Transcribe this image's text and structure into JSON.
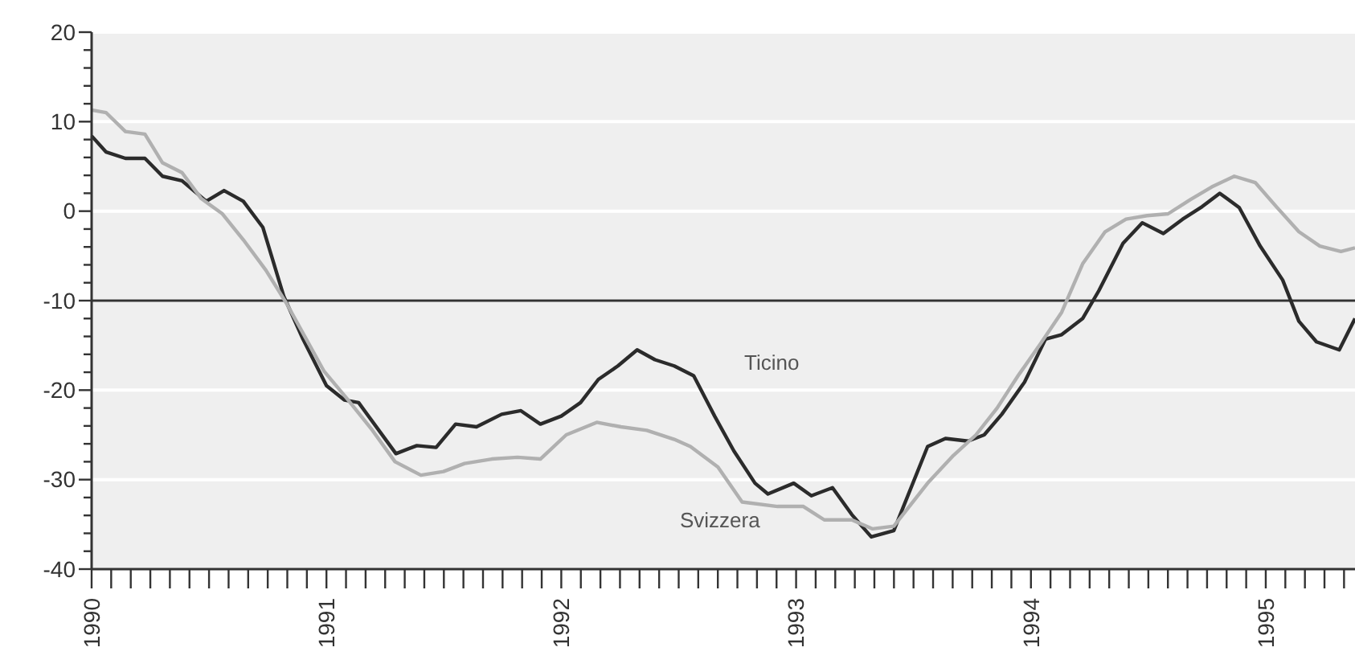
{
  "chart_data": {
    "type": "line",
    "xlim": [
      1990,
      1995.38
    ],
    "ylim": [
      -40,
      20
    ],
    "xticks": [
      1990,
      {
        "value": 1990.0833,
        "label": null
      },
      {
        "value": 1990.1667,
        "label": null
      },
      {
        "value": 1990.25,
        "label": null
      },
      {
        "value": 1990.3333,
        "label": null
      },
      {
        "value": 1990.4167,
        "label": null
      },
      {
        "value": 1990.5,
        "label": null
      },
      {
        "value": 1990.5833,
        "label": null
      },
      {
        "value": 1990.6667,
        "label": null
      },
      {
        "value": 1990.75,
        "label": null
      },
      {
        "value": 1990.8333,
        "label": null
      },
      {
        "value": 1990.9167,
        "label": null
      },
      1991,
      {
        "value": 1991.0833,
        "label": null
      },
      {
        "value": 1991.1667,
        "label": null
      },
      {
        "value": 1991.25,
        "label": null
      },
      {
        "value": 1991.3333,
        "label": null
      },
      {
        "value": 1991.4167,
        "label": null
      },
      {
        "value": 1991.5,
        "label": null
      },
      {
        "value": 1991.5833,
        "label": null
      },
      {
        "value": 1991.6667,
        "label": null
      },
      {
        "value": 1991.75,
        "label": null
      },
      {
        "value": 1991.8333,
        "label": null
      },
      {
        "value": 1991.9167,
        "label": null
      },
      1992,
      {
        "value": 1992.0833,
        "label": null
      },
      {
        "value": 1992.1667,
        "label": null
      },
      {
        "value": 1992.25,
        "label": null
      },
      {
        "value": 1992.3333,
        "label": null
      },
      {
        "value": 1992.4167,
        "label": null
      },
      {
        "value": 1992.5,
        "label": null
      },
      {
        "value": 1992.5833,
        "label": null
      },
      {
        "value": 1992.6667,
        "label": null
      },
      {
        "value": 1992.75,
        "label": null
      },
      {
        "value": 1992.8333,
        "label": null
      },
      {
        "value": 1992.9167,
        "label": null
      },
      1993,
      {
        "value": 1993.0833,
        "label": null
      },
      {
        "value": 1993.1667,
        "label": null
      },
      {
        "value": 1993.25,
        "label": null
      },
      {
        "value": 1993.3333,
        "label": null
      },
      {
        "value": 1993.4167,
        "label": null
      },
      {
        "value": 1993.5,
        "label": null
      },
      {
        "value": 1993.5833,
        "label": null
      },
      {
        "value": 1993.6667,
        "label": null
      },
      {
        "value": 1993.75,
        "label": null
      },
      {
        "value": 1993.8333,
        "label": null
      },
      {
        "value": 1993.9167,
        "label": null
      },
      1994,
      {
        "value": 1994.0833,
        "label": null
      },
      {
        "value": 1994.1667,
        "label": null
      },
      {
        "value": 1994.25,
        "label": null
      },
      {
        "value": 1994.3333,
        "label": null
      },
      {
        "value": 1994.4167,
        "label": null
      },
      {
        "value": 1994.5,
        "label": null
      },
      {
        "value": 1994.5833,
        "label": null
      },
      {
        "value": 1994.6667,
        "label": null
      },
      {
        "value": 1994.75,
        "label": null
      },
      {
        "value": 1994.8333,
        "label": null
      },
      {
        "value": 1994.9167,
        "label": null
      },
      1995,
      {
        "value": 1995.0833,
        "label": null
      },
      {
        "value": 1995.1667,
        "label": null
      },
      {
        "value": 1995.25,
        "label": null
      },
      {
        "value": 1995.3333,
        "label": null
      }
    ],
    "yticks": [
      -40,
      {
        "value": -38,
        "label": null
      },
      {
        "value": -36,
        "label": null
      },
      {
        "value": -34,
        "label": null
      },
      {
        "value": -32,
        "label": null
      },
      -30,
      {
        "value": -28,
        "label": null
      },
      {
        "value": -26,
        "label": null
      },
      {
        "value": -24,
        "label": null
      },
      {
        "value": -22,
        "label": null
      },
      -20,
      {
        "value": -18,
        "label": null
      },
      {
        "value": -16,
        "label": null
      },
      {
        "value": -14,
        "label": null
      },
      {
        "value": -12,
        "label": null
      },
      -10,
      {
        "value": -8,
        "label": null
      },
      {
        "value": -6,
        "label": null
      },
      {
        "value": -4,
        "label": null
      },
      {
        "value": -2,
        "label": null
      },
      0,
      {
        "value": 2,
        "label": null
      },
      {
        "value": 4,
        "label": null
      },
      {
        "value": 6,
        "label": null
      },
      {
        "value": 8,
        "label": null
      },
      10,
      {
        "value": 12,
        "label": null
      },
      {
        "value": 14,
        "label": null
      },
      {
        "value": 16,
        "label": null
      },
      {
        "value": 18,
        "label": null
      },
      20
    ],
    "grid": "y",
    "ref_lines": [
      {
        "axis": "y",
        "value": -10,
        "color": "#333333"
      }
    ],
    "series": [
      {
        "name": "Ticino",
        "color": "#2b2b2b",
        "x": [
          1990,
          1990.062,
          1990.144,
          1990.227,
          1990.302,
          1990.385,
          1990.488,
          1990.564,
          1990.646,
          1990.729,
          1990.818,
          1990.9,
          1991,
          1991.076,
          1991.137,
          1991.296,
          1991.385,
          1991.467,
          1991.55,
          1991.639,
          1991.746,
          1991.828,
          1991.911,
          1992,
          1992.082,
          1992.158,
          1992.241,
          1992.323,
          1992.399,
          1992.481,
          1992.564,
          1992.653,
          1992.735,
          1992.825,
          1992.88,
          1992.99,
          1993.065,
          1993.155,
          1993.237,
          1993.32,
          1993.416,
          1993.56,
          1993.636,
          1993.732,
          1993.801,
          1993.876,
          1993.973,
          1994.062,
          1994.131,
          1994.22,
          1994.289,
          1994.392,
          1994.474,
          1994.564,
          1994.646,
          1994.729,
          1994.804,
          1994.887,
          1994.976,
          1995.072,
          1995.141,
          1995.216,
          1995.313,
          1995.38
        ],
        "values": [
          8.4,
          6.6,
          5.9,
          5.9,
          3.9,
          3.4,
          1.1,
          2.3,
          1.1,
          -1.8,
          -9.5,
          -14.3,
          -19.5,
          -21.1,
          -21.4,
          -27.1,
          -26.2,
          -26.4,
          -23.8,
          -24.1,
          -22.7,
          -22.3,
          -23.8,
          -22.9,
          -21.4,
          -18.8,
          -17.3,
          -15.5,
          -16.6,
          -17.3,
          -18.4,
          -22.9,
          -26.8,
          -30.4,
          -31.6,
          -30.4,
          -31.8,
          -30.9,
          -33.9,
          -36.4,
          -35.7,
          -26.3,
          -25.4,
          -25.7,
          -25.0,
          -22.7,
          -19.1,
          -14.3,
          -13.8,
          -12.0,
          -8.9,
          -3.6,
          -1.3,
          -2.5,
          -0.9,
          0.5,
          2.0,
          0.4,
          -3.9,
          -7.7,
          -12.3,
          -14.6,
          -15.5,
          -12.0
        ]
      },
      {
        "name": "Svizzera",
        "color": "#b0b0b0",
        "x": [
          1990,
          1990.062,
          1990.144,
          1990.227,
          1990.302,
          1990.385,
          1990.467,
          1990.557,
          1990.646,
          1990.742,
          1990.832,
          1990.914,
          1990.99,
          1991.086,
          1991.196,
          1991.292,
          1991.402,
          1991.498,
          1991.588,
          1991.704,
          1991.814,
          1991.911,
          1992.021,
          1992.151,
          1992.254,
          1992.364,
          1992.481,
          1992.55,
          1992.667,
          1992.77,
          1992.921,
          1993.031,
          1993.12,
          1993.237,
          1993.326,
          1993.416,
          1993.56,
          1993.67,
          1993.766,
          1993.856,
          1993.945,
          1994.041,
          1994.131,
          1994.22,
          1994.316,
          1994.405,
          1994.495,
          1994.584,
          1994.68,
          1994.77,
          1994.866,
          1994.955,
          1995.045,
          1995.141,
          1995.23,
          1995.32,
          1995.38
        ],
        "values": [
          11.3,
          11.0,
          8.9,
          8.6,
          5.4,
          4.3,
          1.4,
          -0.3,
          -3.2,
          -6.6,
          -10.4,
          -14.3,
          -17.9,
          -20.9,
          -24.5,
          -28.0,
          -29.5,
          -29.1,
          -28.2,
          -27.7,
          -27.5,
          -27.7,
          -25.0,
          -23.6,
          -24.1,
          -24.5,
          -25.5,
          -26.3,
          -28.6,
          -32.5,
          -33.0,
          -33.0,
          -34.5,
          -34.5,
          -35.5,
          -35.2,
          -30.4,
          -27.3,
          -25.0,
          -22.0,
          -18.4,
          -14.8,
          -11.3,
          -5.9,
          -2.3,
          -0.9,
          -0.5,
          -0.3,
          1.3,
          2.7,
          3.9,
          3.2,
          0.5,
          -2.3,
          -3.9,
          -4.5,
          -4.1
        ]
      }
    ]
  }
}
